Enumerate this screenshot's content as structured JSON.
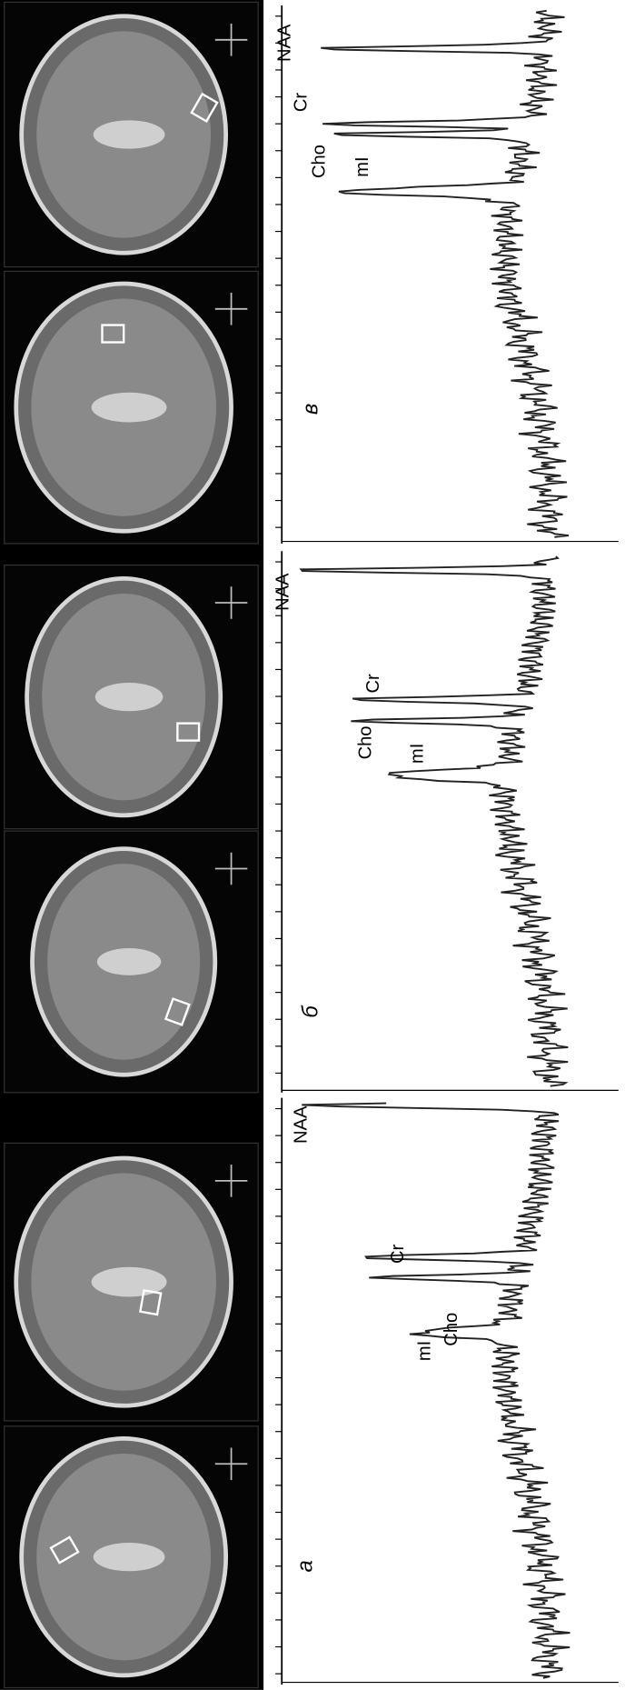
{
  "panels": [
    {
      "label": "а",
      "peaks": [
        "NAA",
        "Cr",
        "Cho",
        "mI"
      ]
    },
    {
      "label": "б",
      "peaks": [
        "NAA",
        "Cr",
        "Cho",
        "mI"
      ]
    },
    {
      "label": "в",
      "peaks": [
        "NAA",
        "Cr",
        "Cho",
        "mI"
      ]
    }
  ]
}
